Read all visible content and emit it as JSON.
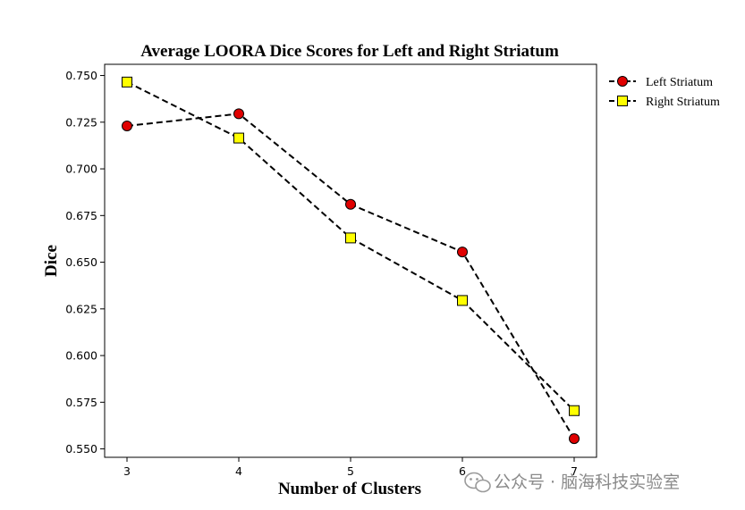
{
  "chart_data": {
    "type": "line",
    "title": "Average LOORA Dice Scores for Left and Right Striatum",
    "xlabel": "Number of Clusters",
    "ylabel": "Dice",
    "x": [
      3,
      4,
      5,
      6,
      7
    ],
    "xlim": [
      2.8,
      7.2
    ],
    "ylim": [
      0.5455,
      0.756
    ],
    "yticks": [
      "0.550",
      "0.575",
      "0.600",
      "0.625",
      "0.650",
      "0.675",
      "0.700",
      "0.725",
      "0.750"
    ],
    "xticks": [
      "3",
      "4",
      "5",
      "6",
      "7"
    ],
    "legend_position": "outside-top-right",
    "series": [
      {
        "name": "Left Striatum",
        "values": [
          0.723,
          0.7295,
          0.681,
          0.6555,
          0.5555
        ],
        "color": "#e00000",
        "marker": "circle",
        "line_style": "dashed"
      },
      {
        "name": "Right Striatum",
        "values": [
          0.7465,
          0.7165,
          0.663,
          0.6295,
          0.5705
        ],
        "color": "#ffff00",
        "marker": "square",
        "line_style": "dashed"
      }
    ]
  },
  "watermark": {
    "text": "公众号 · 脑海科技实验室",
    "icon": "wechat-icon"
  }
}
